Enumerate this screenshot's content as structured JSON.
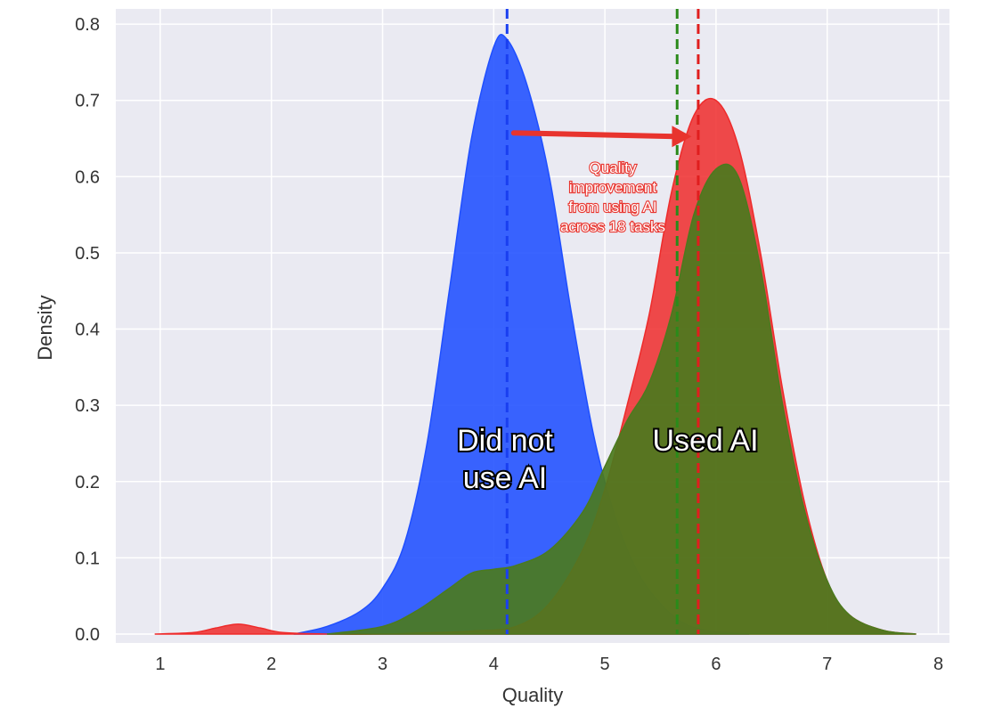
{
  "chart_data": {
    "type": "area",
    "xlabel": "Quality",
    "ylabel": "Density",
    "xlim": [
      0.6,
      8.1
    ],
    "ylim": [
      0,
      0.82
    ],
    "xticks": [
      "1",
      "2",
      "3",
      "4",
      "5",
      "6",
      "7",
      "8"
    ],
    "yticks": [
      "0.0",
      "0.1",
      "0.2",
      "0.3",
      "0.4",
      "0.5",
      "0.6",
      "0.7",
      "0.8"
    ],
    "grid": true,
    "series": [
      {
        "color": "#1f4fff",
        "mean": 4.12,
        "x": [
          2.2,
          2.5,
          2.8,
          3.0,
          3.2,
          3.4,
          3.6,
          3.8,
          4.0,
          4.12,
          4.3,
          4.5,
          4.7,
          4.9,
          5.1,
          5.3,
          5.5,
          5.7,
          5.9,
          6.1,
          6.3
        ],
        "y": [
          0.0,
          0.01,
          0.03,
          0.06,
          0.12,
          0.25,
          0.45,
          0.65,
          0.77,
          0.78,
          0.72,
          0.6,
          0.42,
          0.26,
          0.15,
          0.08,
          0.04,
          0.015,
          0.005,
          0.002,
          0.0
        ]
      },
      {
        "color": "#ee2b2b",
        "mean": 5.84,
        "x": [
          0.95,
          1.3,
          1.5,
          1.7,
          1.9,
          2.1,
          2.5,
          3.0,
          3.5,
          3.8,
          4.2,
          4.5,
          4.8,
          5.0,
          5.2,
          5.4,
          5.6,
          5.8,
          6.0,
          6.2,
          6.4,
          6.6,
          6.8,
          7.0,
          7.2,
          7.5,
          7.8
        ],
        "y": [
          0.0,
          0.002,
          0.008,
          0.013,
          0.008,
          0.002,
          0.0,
          0.0,
          0.002,
          0.004,
          0.01,
          0.04,
          0.11,
          0.19,
          0.3,
          0.42,
          0.58,
          0.68,
          0.7,
          0.64,
          0.5,
          0.32,
          0.17,
          0.07,
          0.025,
          0.005,
          0.0
        ]
      },
      {
        "color": "#4b7a1e",
        "mean": 5.65,
        "x": [
          2.5,
          3.0,
          3.3,
          3.6,
          3.8,
          4.0,
          4.2,
          4.5,
          4.8,
          5.0,
          5.2,
          5.4,
          5.6,
          5.8,
          6.0,
          6.2,
          6.4,
          6.6,
          6.8,
          7.0,
          7.2,
          7.5,
          7.8
        ],
        "y": [
          0.0,
          0.01,
          0.03,
          0.06,
          0.08,
          0.085,
          0.09,
          0.11,
          0.16,
          0.22,
          0.28,
          0.33,
          0.42,
          0.55,
          0.61,
          0.6,
          0.48,
          0.3,
          0.16,
          0.07,
          0.025,
          0.005,
          0.0
        ]
      }
    ],
    "annotations": {
      "arrow_from_x": 4.18,
      "arrow_to_x": 5.78,
      "arrow_y": 0.655,
      "improvement_text": [
        "Quality",
        "improvement",
        "from using AI",
        "across 18 tasks"
      ],
      "did_not_use_label": [
        "Did not",
        "use AI"
      ],
      "used_label": [
        "Used AI"
      ]
    }
  }
}
